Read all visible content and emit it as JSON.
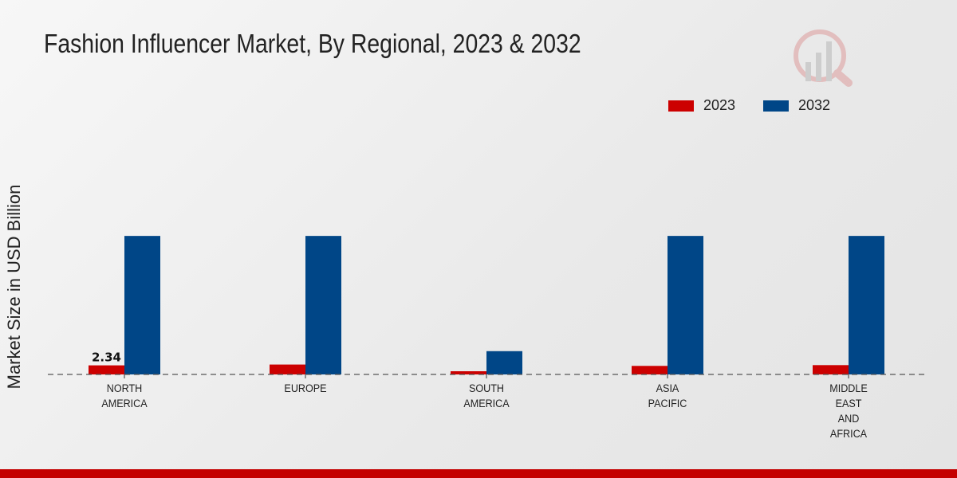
{
  "chart_data": {
    "type": "bar",
    "title": "Fashion Influencer Market, By Regional, 2023 & 2032",
    "xlabel": "",
    "ylabel": "Market Size in USD Billion",
    "categories": [
      [
        "NORTH",
        "AMERICA"
      ],
      [
        "EUROPE"
      ],
      [
        "SOUTH",
        "AMERICA"
      ],
      [
        "ASIA",
        "PACIFIC"
      ],
      [
        "MIDDLE",
        "EAST",
        "AND",
        "AFRICA"
      ]
    ],
    "series": [
      {
        "name": "2023",
        "color": "#cc0000",
        "values": [
          2.34,
          2.55,
          0.82,
          2.2,
          2.4
        ]
      },
      {
        "name": "2032",
        "color": "#004687",
        "values": [
          35.7,
          35.7,
          6.0,
          35.7,
          35.7
        ]
      }
    ],
    "data_labels": [
      {
        "series": 0,
        "index": 0,
        "text": "2.34"
      }
    ],
    "ylim": [
      0,
      40
    ],
    "grid": false,
    "legend_position": "top-right"
  },
  "footer_color": "#c40000"
}
